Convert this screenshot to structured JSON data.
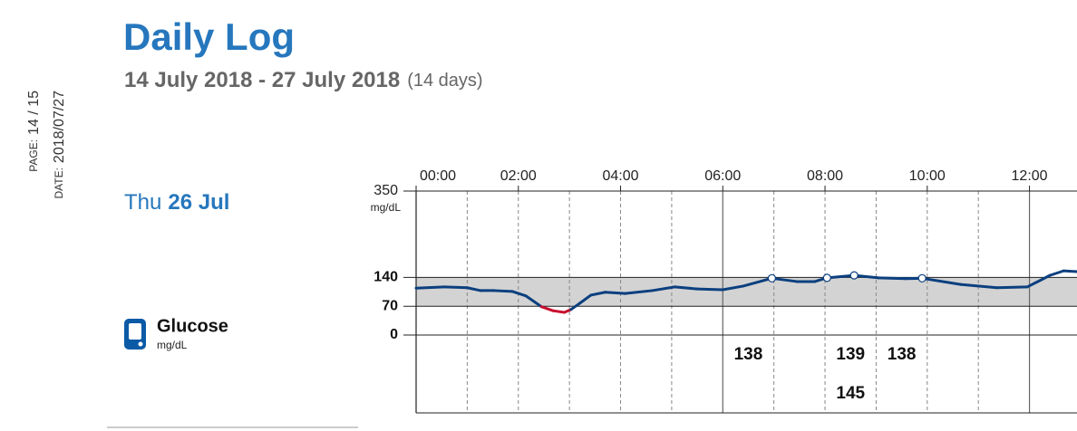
{
  "header": {
    "title": "Daily Log",
    "date_range": "14 July 2018 - 27 July 2018",
    "duration": "(14 days)"
  },
  "side": {
    "page_label": "PAGE:",
    "page": "14 / 15",
    "date_label": "DATE:",
    "date": "2018/07/27"
  },
  "day": {
    "weekday": "Thu",
    "date": "26 Jul"
  },
  "chart_data": {
    "type": "line",
    "y_unit": "mg/dL",
    "xlim": [
      0,
      12.93
    ],
    "xticks": [
      {
        "value": 0,
        "label": "00:00"
      },
      {
        "value": 2,
        "label": "02:00"
      },
      {
        "value": 4,
        "label": "04:00"
      },
      {
        "value": 6,
        "label": "06:00"
      },
      {
        "value": 8,
        "label": "08:00"
      },
      {
        "value": 10,
        "label": "10:00"
      },
      {
        "value": 12,
        "label": "12:00"
      }
    ],
    "x_minor_grid": [
      1,
      2,
      3,
      4,
      5,
      7,
      8,
      9,
      10,
      11
    ],
    "x_major_grid": [
      6,
      12
    ],
    "ylim": [
      0,
      350
    ],
    "yticks": [
      0,
      70,
      140,
      350
    ],
    "target_range": [
      70,
      140
    ],
    "target_color": "#d3d3d3",
    "series": [
      {
        "name": "Glucose",
        "color": "#0b3f7f",
        "low_color": "#c8102e",
        "x": [
          0,
          0.55,
          1.0,
          1.26,
          1.53,
          1.88,
          2.15,
          2.45,
          2.68,
          2.9,
          3.03,
          3.2,
          3.42,
          3.7,
          4.09,
          4.62,
          5.06,
          5.5,
          6.0,
          6.4,
          6.96,
          7.45,
          7.8,
          8.04,
          8.57,
          9.05,
          9.58,
          9.9,
          10.65,
          11.36,
          11.96,
          12.4,
          12.67,
          12.93
        ],
        "values": [
          114,
          117,
          115,
          108,
          108,
          106,
          95,
          69,
          59,
          55,
          62,
          77,
          97,
          104,
          101,
          108,
          117,
          112,
          110,
          119,
          138,
          130,
          130,
          139,
          145,
          139,
          137,
          138,
          123,
          115,
          117,
          145,
          156,
          154
        ]
      }
    ],
    "readings": {
      "x": [
        6.96,
        8.04,
        8.57,
        9.9
      ],
      "values": [
        138,
        139,
        145,
        138
      ],
      "marker_color": "#ffffff"
    }
  }
}
